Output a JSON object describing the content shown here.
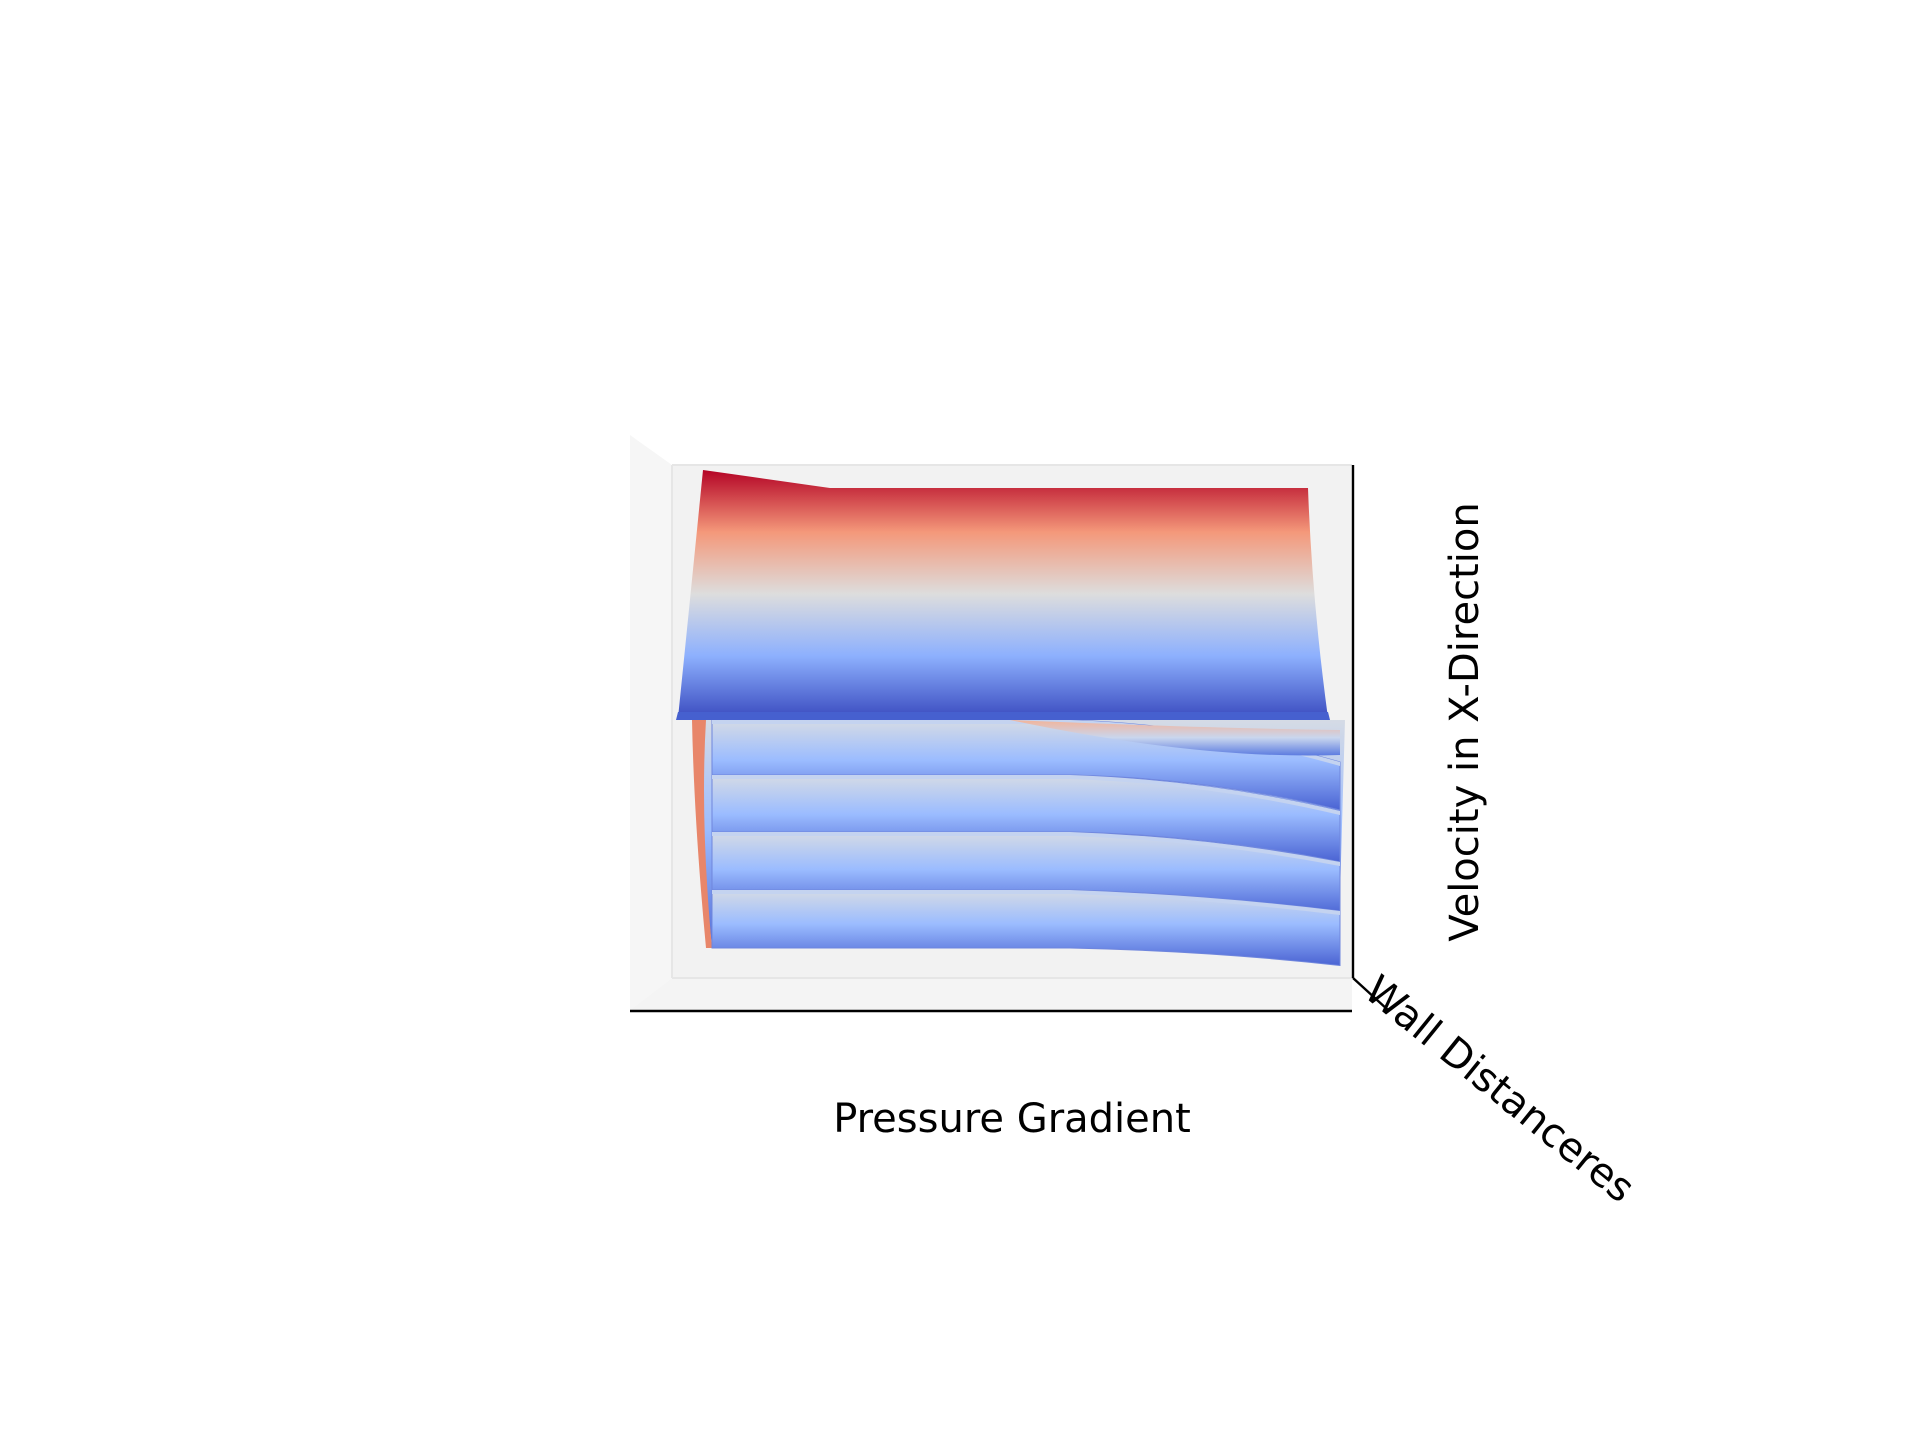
{
  "chart_data": {
    "type": "surface3d",
    "title": "",
    "xlabel": "Pressure Gradient",
    "ylabel": "Wall Distanceres",
    "zlabel": "Velocity in X-Direction",
    "colormap": "coolwarm",
    "colormap_stops": [
      "#3b4cc0",
      "#8db0fe",
      "#dddddd",
      "#f4987a",
      "#b40426"
    ],
    "pane_color": "#f2f2f2",
    "axis_color": "#000000",
    "ticks_visible": false,
    "grid": false,
    "view": "front (elevation ~0°, azimuth ~-90°)",
    "surface_count": 5,
    "surface_note": "Velocity profiles stacked over wall distance; upper surface spans full velocity range, lower surfaces bend downward at high pressure gradient"
  }
}
